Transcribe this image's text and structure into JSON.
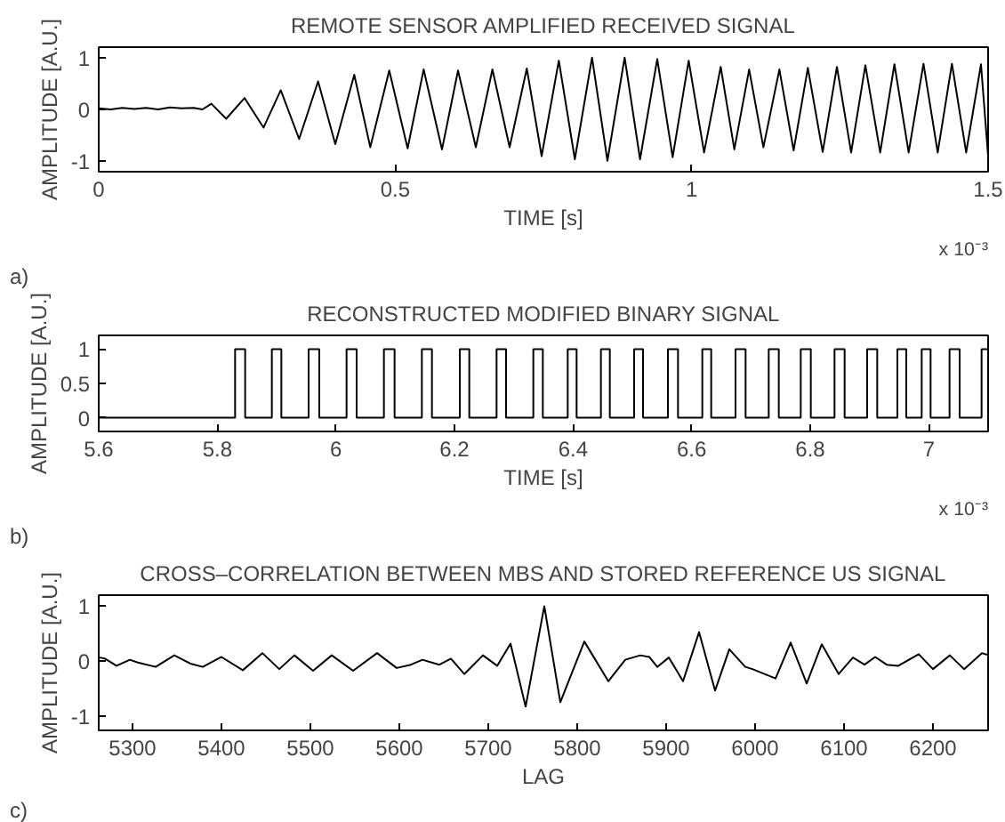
{
  "chart_data": [
    {
      "type": "line",
      "title": "REMOTE SENSOR AMPLIFIED RECEIVED SIGNAL",
      "xlabel": "TIME [s]",
      "ylabel": "AMPLITUDE [A.U.]",
      "annotations": [
        "x 10⁻³",
        "a)"
      ],
      "xlim": [
        0,
        1.5
      ],
      "ylim": [
        -1.2,
        1.2
      ],
      "xticks": [
        0,
        0.5,
        1,
        1.5
      ],
      "yticks": [
        -1,
        0,
        1
      ],
      "series": [
        {
          "color": "#000000",
          "x": [
            0,
            0.02,
            0.04,
            0.06,
            0.08,
            0.1,
            0.12,
            0.14,
            0.16,
            0.175,
            0.19,
            0.215,
            0.246,
            0.278,
            0.307,
            0.338,
            0.37,
            0.399,
            0.431,
            0.458,
            0.49,
            0.521,
            0.548,
            0.579,
            0.606,
            0.636,
            0.664,
            0.693,
            0.722,
            0.747,
            0.776,
            0.803,
            0.832,
            0.858,
            0.887,
            0.913,
            0.942,
            0.968,
            0.995,
            1.021,
            1.049,
            1.072,
            1.097,
            1.121,
            1.148,
            1.172,
            1.196,
            1.221,
            1.245,
            1.269,
            1.293,
            1.318,
            1.342,
            1.366,
            1.391,
            1.415,
            1.439,
            1.463,
            1.488,
            1.5
          ],
          "values": [
            0.02,
            0.0,
            0.03,
            0.01,
            0.03,
            0.0,
            0.04,
            0.02,
            0.03,
            0.0,
            0.11,
            -0.18,
            0.22,
            -0.35,
            0.37,
            -0.57,
            0.54,
            -0.67,
            0.67,
            -0.73,
            0.75,
            -0.75,
            0.77,
            -0.77,
            0.75,
            -0.73,
            0.77,
            -0.73,
            0.79,
            -0.9,
            0.94,
            -0.96,
            1.0,
            -0.99,
            1.0,
            -0.96,
            0.97,
            -0.92,
            0.94,
            -0.83,
            0.82,
            -0.77,
            0.77,
            -0.73,
            0.77,
            -0.79,
            0.8,
            -0.82,
            0.82,
            -0.83,
            0.85,
            -0.83,
            0.87,
            -0.83,
            0.88,
            -0.83,
            0.88,
            -0.83,
            0.87,
            -0.9
          ]
        }
      ]
    },
    {
      "type": "step",
      "title": "RECONSTRUCTED MODIFIED BINARY SIGNAL",
      "xlabel": "TIME [s]",
      "ylabel": "AMPLITUDE [A.U.]",
      "annotations": [
        "x 10⁻³",
        "b)"
      ],
      "xlim": [
        5.6,
        7.1
      ],
      "ylim": [
        -0.2,
        1.2
      ],
      "xticks": [
        5.6,
        5.8,
        6,
        6.2,
        6.4,
        6.6,
        6.8,
        7
      ],
      "yticks": [
        0,
        0.5,
        1
      ],
      "series": [
        {
          "color": "#000000",
          "x": [
            5.6,
            5.83,
            5.847,
            5.892,
            5.908,
            5.954,
            5.972,
            6.018,
            6.035,
            6.081,
            6.099,
            6.145,
            6.162,
            6.209,
            6.225,
            6.271,
            6.287,
            6.333,
            6.349,
            6.391,
            6.406,
            6.447,
            6.462,
            6.503,
            6.518,
            6.56,
            6.577,
            6.618,
            6.633,
            6.674,
            6.691,
            6.73,
            6.747,
            6.784,
            6.801,
            6.841,
            6.858,
            6.896,
            6.913,
            6.947,
            6.962,
            6.988,
            7.003,
            7.035,
            7.052,
            7.089,
            7.1
          ],
          "values": [
            0,
            1,
            0,
            1,
            0,
            1,
            0,
            1,
            0,
            1,
            0,
            1,
            0,
            1,
            0,
            1,
            0,
            1,
            0,
            1,
            0,
            1,
            0,
            1,
            0,
            1,
            0,
            1,
            0,
            1,
            0,
            1,
            0,
            1,
            0,
            1,
            0,
            1,
            0,
            1,
            0,
            1,
            0,
            1,
            0,
            1,
            1
          ]
        }
      ]
    },
    {
      "type": "line",
      "title": "CROSS–CORRELATION BETWEEN MBS AND STORED REFERENCE US SIGNAL",
      "xlabel": "LAG",
      "ylabel": "AMPLITUDE [A.U.]",
      "annotations": [
        "c)"
      ],
      "xlim": [
        5262,
        6262
      ],
      "ylim": [
        -1.25,
        1.2
      ],
      "xticks": [
        5300,
        5400,
        5500,
        5600,
        5700,
        5800,
        5900,
        6000,
        6100,
        6200
      ],
      "yticks": [
        -1,
        0,
        1
      ],
      "series": [
        {
          "color": "#000000",
          "x": [
            5263,
            5269,
            5282,
            5297,
            5306,
            5326,
            5347,
            5365,
            5379,
            5400,
            5424,
            5446,
            5465,
            5482,
            5503,
            5524,
            5548,
            5575,
            5597,
            5613,
            5626,
            5645,
            5658,
            5673,
            5694,
            5710,
            5725,
            5742,
            5763,
            5781,
            5808,
            5835,
            5854,
            5871,
            5881,
            5890,
            5903,
            5919,
            5937,
            5955,
            5971,
            5989,
            5997,
            6023,
            6040,
            6058,
            6075,
            6094,
            6110,
            6123,
            6135,
            6148,
            6161,
            6184,
            6200,
            6219,
            6235,
            6255,
            6261
          ],
          "values": [
            0.07,
            0.05,
            -0.08,
            0.03,
            -0.02,
            -0.1,
            0.11,
            -0.04,
            -0.1,
            0.08,
            -0.16,
            0.15,
            -0.14,
            0.11,
            -0.17,
            0.11,
            -0.17,
            0.15,
            -0.12,
            -0.06,
            0.03,
            -0.06,
            0.05,
            -0.23,
            0.11,
            -0.08,
            0.32,
            -0.82,
            1.0,
            -0.74,
            0.36,
            -0.36,
            0.03,
            0.11,
            0.08,
            -0.1,
            0.07,
            -0.36,
            0.53,
            -0.53,
            0.22,
            -0.1,
            -0.14,
            -0.31,
            0.34,
            -0.4,
            0.31,
            -0.23,
            0.07,
            -0.06,
            0.08,
            -0.06,
            -0.08,
            0.13,
            -0.14,
            0.11,
            -0.14,
            0.15,
            0.12
          ]
        }
      ]
    }
  ]
}
